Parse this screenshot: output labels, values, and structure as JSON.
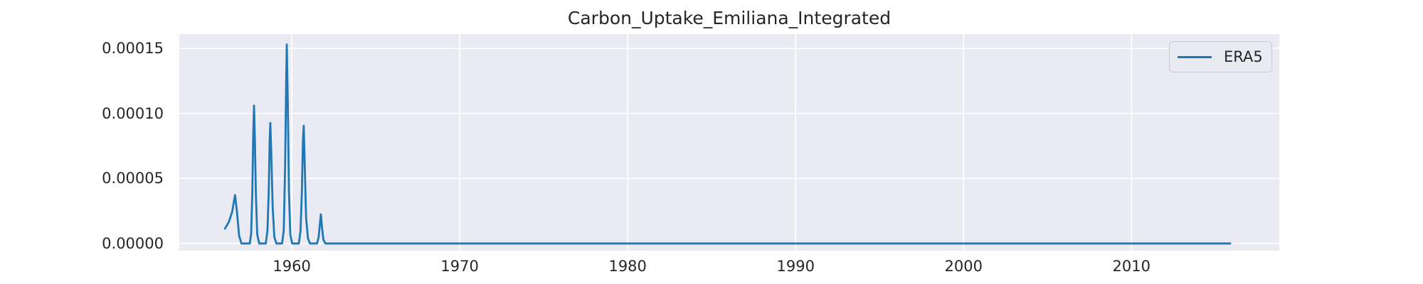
{
  "figure": {
    "title": "Carbon_Uptake_Emiliana_Integrated"
  },
  "chart_data": {
    "type": "line",
    "title": "Carbon_Uptake_Emiliana_Integrated",
    "xlabel": "",
    "ylabel": "",
    "xlim": [
      1953.3,
      2018.8
    ],
    "ylim": [
      -5.5e-06,
      0.000161
    ],
    "xticks": [
      1960,
      1970,
      1980,
      1990,
      2000,
      2010
    ],
    "xtick_labels": [
      "1960",
      "1970",
      "1980",
      "1990",
      "2000",
      "2010"
    ],
    "yticks": [
      0.0,
      5e-05,
      0.0001,
      0.00015
    ],
    "ytick_labels": [
      "0.00000",
      "0.00005",
      "0.00010",
      "0.00015"
    ],
    "grid": true,
    "legend_position": "upper right",
    "colors": {
      "plot_background": "#eaeaf2",
      "grid": "#ffffff",
      "text": "#262626",
      "series_blue": "#1f77b4",
      "legend_border": "#c9c9d3",
      "legend_background": "#eaeaf2"
    },
    "legend": {
      "entries": [
        {
          "label": "ERA5",
          "color": "#1f77b4"
        }
      ]
    },
    "series": [
      {
        "name": "ERA5",
        "color": "#1f77b4",
        "points": [
          [
            1956.02,
            1.15e-05
          ],
          [
            1956.25,
            1.65e-05
          ],
          [
            1956.45,
            2.45e-05
          ],
          [
            1956.62,
            3.72e-05
          ],
          [
            1956.73,
            2.5e-05
          ],
          [
            1956.86,
            6e-06
          ],
          [
            1957.0,
            0.0
          ],
          [
            1957.5,
            0.0
          ],
          [
            1957.58,
            8e-06
          ],
          [
            1957.65,
            4e-05
          ],
          [
            1957.7,
            8.2e-05
          ],
          [
            1957.75,
            0.000106
          ],
          [
            1957.8,
            8e-05
          ],
          [
            1957.86,
            3.8e-05
          ],
          [
            1957.94,
            7e-06
          ],
          [
            1958.06,
            0.0
          ],
          [
            1958.45,
            0.0
          ],
          [
            1958.55,
            1e-05
          ],
          [
            1958.63,
            4.2e-05
          ],
          [
            1958.68,
            7.8e-05
          ],
          [
            1958.72,
            9.27e-05
          ],
          [
            1958.78,
            6.8e-05
          ],
          [
            1958.86,
            2.8e-05
          ],
          [
            1958.96,
            5e-06
          ],
          [
            1959.08,
            0.0
          ],
          [
            1959.42,
            0.0
          ],
          [
            1959.52,
            1e-05
          ],
          [
            1959.6,
            5.8e-05
          ],
          [
            1959.66,
            0.00012
          ],
          [
            1959.7,
            0.000153
          ],
          [
            1959.76,
            0.000108
          ],
          [
            1959.83,
            4e-05
          ],
          [
            1959.91,
            7e-06
          ],
          [
            1960.02,
            0.0
          ],
          [
            1960.42,
            0.0
          ],
          [
            1960.52,
            1e-05
          ],
          [
            1960.6,
            4e-05
          ],
          [
            1960.66,
            7.8e-05
          ],
          [
            1960.71,
            9.05e-05
          ],
          [
            1960.77,
            6e-05
          ],
          [
            1960.85,
            2e-05
          ],
          [
            1960.96,
            4e-06
          ],
          [
            1961.08,
            0.0
          ],
          [
            1961.5,
            0.0
          ],
          [
            1961.6,
            5e-06
          ],
          [
            1961.68,
            1.6e-05
          ],
          [
            1961.73,
            2.24e-05
          ],
          [
            1961.8,
            1.2e-05
          ],
          [
            1961.88,
            3e-06
          ],
          [
            1962.0,
            0.0
          ],
          [
            1962.4,
            0.0
          ],
          [
            1970.0,
            0.0
          ],
          [
            1980.0,
            0.0
          ],
          [
            1990.0,
            0.0
          ],
          [
            2000.0,
            0.0
          ],
          [
            2010.0,
            0.0
          ],
          [
            2015.88,
            0.0
          ]
        ]
      }
    ]
  }
}
